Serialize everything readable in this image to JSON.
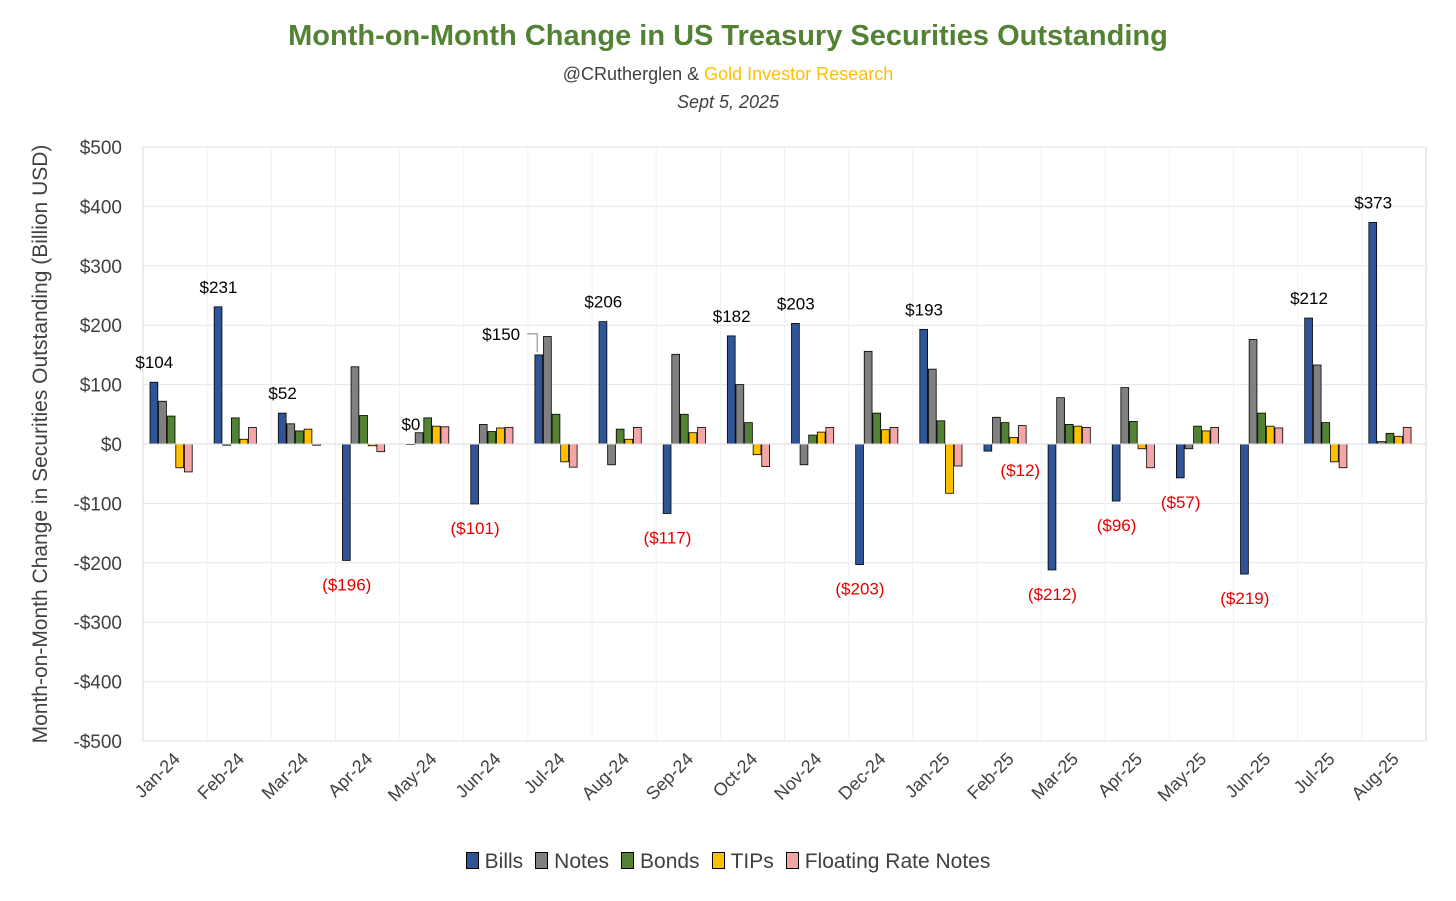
{
  "header": {
    "title": "Month-on-Month Change in US Treasury Securities Outstanding",
    "author": "@CRutherglen",
    "ampersand": " & ",
    "partner": "Gold Investor Research",
    "date": "Sept 5, 2025"
  },
  "colors": {
    "title": "#548235",
    "partner": "#FFC000",
    "negative_label": "#E00000",
    "bills": "#2F5597",
    "notes": "#808080",
    "bonds": "#548235",
    "tips": "#FFC000",
    "frn": "#F4A6A6"
  },
  "chart_data": {
    "type": "bar",
    "title": "Month-on-Month Change in US Treasury Securities Outstanding",
    "ylabel": "Month-on-Month Change in Securities Outstanding (Billion USD)",
    "xlabel": "",
    "ylim": [
      -500,
      500
    ],
    "ytick_step": 100,
    "ytick_labels": [
      "$500",
      "$400",
      "$300",
      "$200",
      "$100",
      "$0",
      "-$100",
      "-$200",
      "-$300",
      "-$400",
      "-$500"
    ],
    "grid": true,
    "legend_position": "bottom",
    "categories": [
      "Jan-24",
      "Feb-24",
      "Mar-24",
      "Apr-24",
      "May-24",
      "Jun-24",
      "Jul-24",
      "Aug-24",
      "Sep-24",
      "Oct-24",
      "Nov-24",
      "Dec-24",
      "Jan-25",
      "Feb-25",
      "Mar-25",
      "Apr-25",
      "May-25",
      "Jun-25",
      "Jul-25",
      "Aug-25"
    ],
    "series": [
      {
        "name": "Bills",
        "color": "#2F5597",
        "values": [
          104,
          231,
          52,
          -196,
          0,
          -101,
          150,
          206,
          -117,
          182,
          203,
          -203,
          193,
          -12,
          -212,
          -96,
          -57,
          -219,
          212,
          373
        ]
      },
      {
        "name": "Notes",
        "color": "#808080",
        "values": [
          72,
          -2,
          34,
          130,
          19,
          33,
          181,
          -35,
          151,
          100,
          -35,
          156,
          126,
          45,
          78,
          95,
          -8,
          176,
          133,
          4
        ]
      },
      {
        "name": "Bonds",
        "color": "#548235",
        "values": [
          47,
          44,
          22,
          48,
          44,
          21,
          50,
          25,
          50,
          36,
          15,
          52,
          39,
          36,
          33,
          38,
          30,
          52,
          36,
          18
        ]
      },
      {
        "name": "TIPs",
        "color": "#FFC000",
        "values": [
          -40,
          8,
          25,
          -3,
          30,
          27,
          -30,
          8,
          19,
          -18,
          20,
          24,
          -83,
          11,
          30,
          -8,
          22,
          30,
          -30,
          13
        ]
      },
      {
        "name": "Floating Rate Notes",
        "color": "#F4A6A6",
        "values": [
          -47,
          28,
          -2,
          -13,
          29,
          28,
          -39,
          28,
          28,
          -38,
          28,
          28,
          -37,
          31,
          28,
          -40,
          28,
          27,
          -40,
          28
        ]
      }
    ],
    "data_labels": [
      "$104",
      "$231",
      "$52",
      "($196)",
      "$0",
      "($101)",
      "$150",
      "$206",
      "($117)",
      "$182",
      "$203",
      "($203)",
      "$193",
      "($12)",
      "($212)",
      "($96)",
      "($57)",
      "($219)",
      "$212",
      "$373"
    ]
  }
}
